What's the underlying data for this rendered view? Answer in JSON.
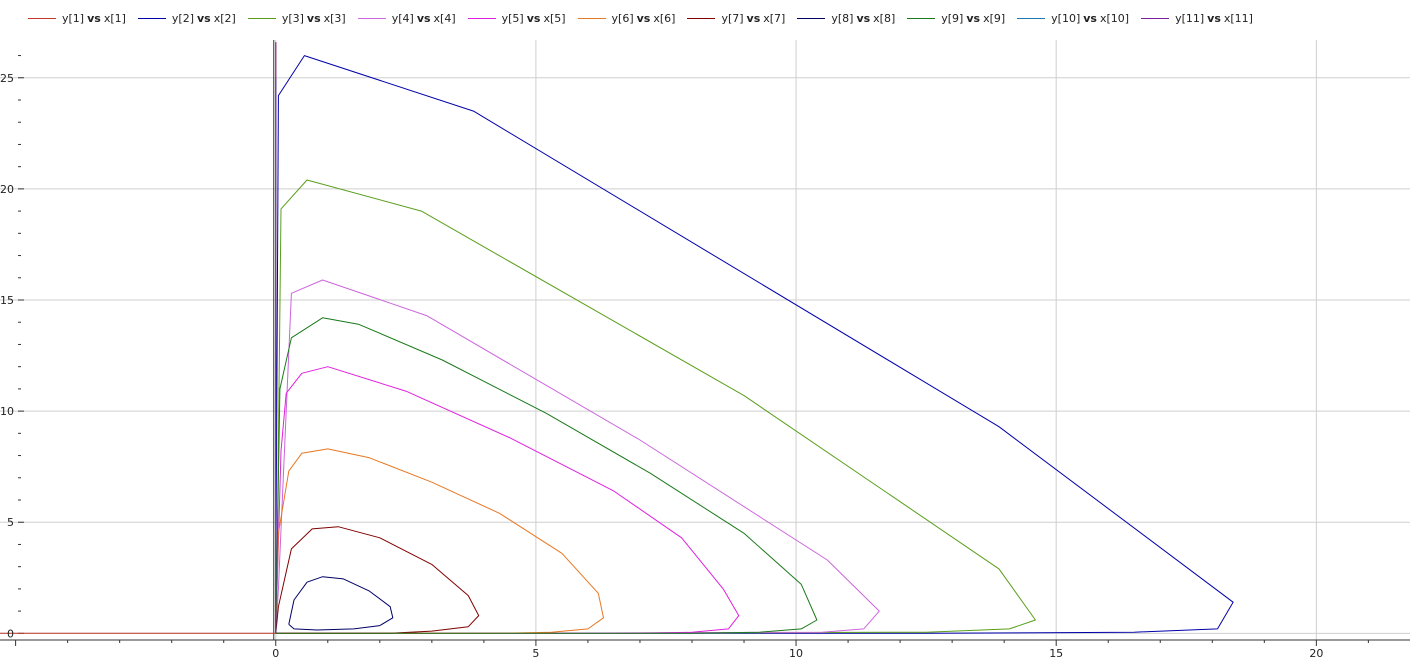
{
  "chart_data": {
    "type": "line",
    "title": "",
    "xlabel": "",
    "ylabel": "",
    "xlim": [
      -5.3,
      21.8
    ],
    "ylim": [
      -0.3,
      26.7
    ],
    "x_ticks": [
      0,
      5,
      10,
      15,
      20
    ],
    "y_ticks": [
      0,
      5,
      10,
      15,
      20,
      25
    ],
    "grid": true,
    "legend_position": "top",
    "legend_vs": "vs",
    "series": [
      {
        "y_name": "y[1]",
        "x_name": "x[1]",
        "color": "#c0392b",
        "points": [
          [
            -5.3,
            0
          ],
          [
            0,
            0
          ],
          [
            0,
            26.6
          ]
        ]
      },
      {
        "y_name": "y[2]",
        "x_name": "x[2]",
        "color": "#0000aa",
        "points": [
          [
            0,
            0
          ],
          [
            0,
            1.5
          ],
          [
            0.05,
            24.2
          ],
          [
            0.55,
            26.0
          ],
          [
            3.8,
            23.5
          ],
          [
            13.9,
            9.3
          ],
          [
            18.4,
            1.4
          ],
          [
            18.1,
            0.2
          ],
          [
            16.5,
            0.05
          ],
          [
            12.5,
            0
          ],
          [
            0,
            0
          ]
        ]
      },
      {
        "y_name": "y[3]",
        "x_name": "x[3]",
        "color": "#5a9e1b",
        "points": [
          [
            0,
            0
          ],
          [
            0.02,
            2
          ],
          [
            0.1,
            19.1
          ],
          [
            0.6,
            20.4
          ],
          [
            2.8,
            19.0
          ],
          [
            9.0,
            10.7
          ],
          [
            13.9,
            2.9
          ],
          [
            14.6,
            0.6
          ],
          [
            14.1,
            0.2
          ],
          [
            12.5,
            0.05
          ],
          [
            5,
            0
          ],
          [
            0,
            0
          ]
        ]
      },
      {
        "y_name": "y[4]",
        "x_name": "x[4]",
        "color": "#cc66dd",
        "points": [
          [
            0,
            0
          ],
          [
            0.05,
            2
          ],
          [
            0.3,
            15.3
          ],
          [
            0.9,
            15.9
          ],
          [
            2.9,
            14.3
          ],
          [
            7.0,
            8.7
          ],
          [
            10.6,
            3.3
          ],
          [
            11.6,
            1.0
          ],
          [
            11.3,
            0.2
          ],
          [
            10.5,
            0.05
          ],
          [
            5,
            0
          ],
          [
            0,
            0
          ]
        ]
      },
      {
        "y_name": "y[5]",
        "x_name": "x[5]",
        "color": "#e020e0",
        "points": [
          [
            0,
            0
          ],
          [
            0.1,
            8.2
          ],
          [
            0.2,
            10.8
          ],
          [
            0.5,
            11.7
          ],
          [
            1.0,
            12.0
          ],
          [
            2.5,
            10.9
          ],
          [
            4.5,
            8.8
          ],
          [
            6.5,
            6.4
          ],
          [
            7.8,
            4.3
          ],
          [
            8.6,
            2.0
          ],
          [
            8.9,
            0.8
          ],
          [
            8.7,
            0.2
          ],
          [
            8.0,
            0.05
          ],
          [
            7.0,
            0
          ],
          [
            0,
            0
          ]
        ]
      },
      {
        "y_name": "y[6]",
        "x_name": "x[6]",
        "color": "#e87722",
        "points": [
          [
            0,
            0
          ],
          [
            0.05,
            4.5
          ],
          [
            0.25,
            7.3
          ],
          [
            0.5,
            8.1
          ],
          [
            1.0,
            8.3
          ],
          [
            1.8,
            7.9
          ],
          [
            3.0,
            6.8
          ],
          [
            4.3,
            5.4
          ],
          [
            5.5,
            3.6
          ],
          [
            6.2,
            1.8
          ],
          [
            6.3,
            0.7
          ],
          [
            6.0,
            0.2
          ],
          [
            5.3,
            0.05
          ],
          [
            4.3,
            0
          ],
          [
            0,
            0
          ]
        ]
      },
      {
        "y_name": "y[7]",
        "x_name": "x[7]",
        "color": "#800000",
        "points": [
          [
            0,
            0
          ],
          [
            0.05,
            1.2
          ],
          [
            0.3,
            3.8
          ],
          [
            0.7,
            4.7
          ],
          [
            1.2,
            4.8
          ],
          [
            2.0,
            4.3
          ],
          [
            3.0,
            3.1
          ],
          [
            3.7,
            1.7
          ],
          [
            3.9,
            0.8
          ],
          [
            3.7,
            0.3
          ],
          [
            3.0,
            0.1
          ],
          [
            2.2,
            0
          ],
          [
            0,
            0
          ]
        ]
      },
      {
        "y_name": "y[8]",
        "x_name": "x[8]",
        "color": "#000066",
        "points": [
          [
            0.25,
            0.4
          ],
          [
            0.35,
            1.5
          ],
          [
            0.6,
            2.3
          ],
          [
            0.9,
            2.55
          ],
          [
            1.3,
            2.45
          ],
          [
            1.8,
            1.9
          ],
          [
            2.2,
            1.2
          ],
          [
            2.25,
            0.7
          ],
          [
            2.0,
            0.35
          ],
          [
            1.5,
            0.2
          ],
          [
            0.8,
            0.15
          ],
          [
            0.35,
            0.2
          ],
          [
            0.25,
            0.4
          ]
        ]
      },
      {
        "y_name": "y[9]",
        "x_name": "x[9]",
        "color": "#1a7a1a",
        "points": [
          [
            0,
            0
          ],
          [
            0.08,
            11.0
          ],
          [
            0.3,
            13.3
          ],
          [
            0.9,
            14.2
          ],
          [
            1.6,
            13.9
          ],
          [
            3.2,
            12.3
          ],
          [
            5.2,
            9.9
          ],
          [
            7.2,
            7.2
          ],
          [
            9.0,
            4.5
          ],
          [
            10.1,
            2.2
          ],
          [
            10.4,
            0.6
          ],
          [
            10.1,
            0.2
          ],
          [
            9.3,
            0.05
          ],
          [
            8.0,
            0
          ],
          [
            0,
            0
          ]
        ]
      },
      {
        "y_name": "y[10]",
        "x_name": "x[10]",
        "color": "#1f77b4",
        "points": [
          [
            0,
            0
          ],
          [
            0,
            25.0
          ]
        ]
      },
      {
        "y_name": "y[11]",
        "x_name": "x[11]",
        "color": "#7b1fa2",
        "points": [
          [
            0,
            0
          ],
          [
            0,
            26.6
          ]
        ]
      }
    ]
  }
}
